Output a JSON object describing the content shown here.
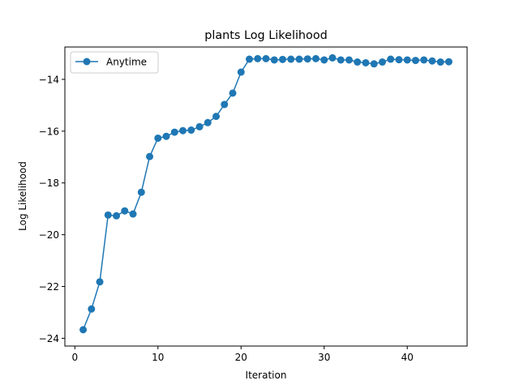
{
  "chart_data": {
    "type": "line",
    "title": "plants Log Likelihood",
    "xlabel": "Iteration",
    "ylabel": "Log Likelihood",
    "xlim": [
      -1.2,
      47.2
    ],
    "ylim": [
      -24.3,
      -12.75
    ],
    "xticks": [
      0,
      10,
      20,
      30,
      40
    ],
    "yticks": [
      -24,
      -22,
      -20,
      -18,
      -16,
      -14
    ],
    "legend_position": "upper-left",
    "grid": false,
    "series": [
      {
        "name": "Anytime",
        "color": "#1f77b4",
        "marker": "circle",
        "x": [
          1,
          2,
          3,
          4,
          5,
          6,
          7,
          8,
          9,
          10,
          11,
          12,
          13,
          14,
          15,
          16,
          17,
          18,
          19,
          20,
          21,
          22,
          23,
          24,
          25,
          26,
          27,
          28,
          29,
          30,
          31,
          32,
          33,
          34,
          35,
          36,
          37,
          38,
          39,
          40,
          41,
          42,
          43,
          44,
          45
        ],
        "y": [
          -23.67,
          -22.87,
          -21.82,
          -19.24,
          -19.27,
          -19.08,
          -19.2,
          -18.36,
          -16.98,
          -16.27,
          -16.2,
          -16.04,
          -15.98,
          -15.96,
          -15.83,
          -15.67,
          -15.43,
          -14.97,
          -14.53,
          -13.72,
          -13.22,
          -13.2,
          -13.2,
          -13.25,
          -13.23,
          -13.22,
          -13.22,
          -13.21,
          -13.2,
          -13.25,
          -13.17,
          -13.25,
          -13.25,
          -13.33,
          -13.36,
          -13.4,
          -13.33,
          -13.22,
          -13.24,
          -13.25,
          -13.27,
          -13.25,
          -13.29,
          -13.33,
          -13.32
        ]
      }
    ]
  }
}
